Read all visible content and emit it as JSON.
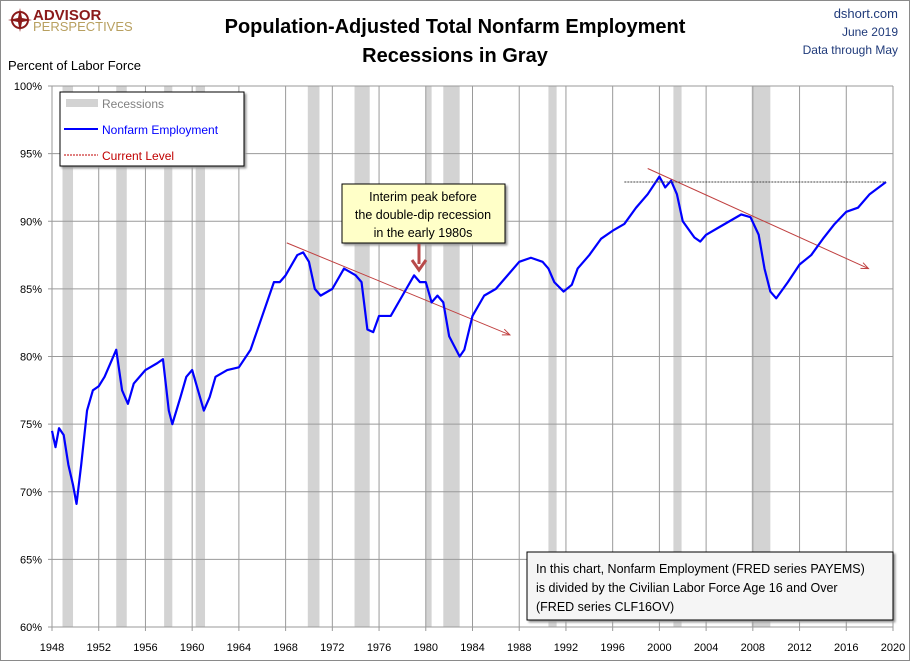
{
  "logo": {
    "line1": "ADVISOR",
    "line2": "PERSPECTIVES"
  },
  "source": {
    "site": "dshort.com",
    "date": "June 2019",
    "note": "Data through May"
  },
  "chart_data": {
    "type": "line",
    "title": "Population-Adjusted Total Nonfarm Employment",
    "subtitle": "Recessions in Gray",
    "ylabel": "Percent of Labor Force",
    "xlim": [
      1948,
      2020
    ],
    "ylim": [
      60,
      100
    ],
    "xticks": [
      1948,
      1952,
      1956,
      1960,
      1964,
      1968,
      1972,
      1976,
      1980,
      1984,
      1988,
      1992,
      1996,
      2000,
      2004,
      2008,
      2012,
      2016,
      2020
    ],
    "yticks": [
      60,
      65,
      70,
      75,
      80,
      85,
      90,
      95,
      100
    ],
    "ytick_suffix": "%",
    "grid": true,
    "legend_placement": "top-left",
    "legend": [
      {
        "label": "Recessions",
        "color": "#d3d3d3"
      },
      {
        "label": "Nonfarm Employment",
        "color": "#0000ff"
      },
      {
        "label": "Current Level",
        "color": "#c00000"
      }
    ],
    "recessions": [
      [
        1948.9,
        1949.8
      ],
      [
        1953.5,
        1954.4
      ],
      [
        1957.6,
        1958.3
      ],
      [
        1960.3,
        1961.1
      ],
      [
        1969.9,
        1970.9
      ],
      [
        1973.9,
        1975.2
      ],
      [
        1980.0,
        1980.5
      ],
      [
        1981.5,
        1982.9
      ],
      [
        1990.5,
        1991.2
      ],
      [
        2001.2,
        2001.9
      ],
      [
        2007.9,
        2009.5
      ]
    ],
    "series": [
      {
        "name": "Nonfarm Employment",
        "color": "#0000ff",
        "x": [
          1948,
          1948.3,
          1948.6,
          1949,
          1949.4,
          1949.8,
          1950.1,
          1950.5,
          1951,
          1951.5,
          1952,
          1952.5,
          1953,
          1953.5,
          1954,
          1954.5,
          1955,
          1956,
          1957,
          1957.5,
          1958,
          1958.3,
          1959,
          1959.5,
          1960,
          1960.5,
          1961,
          1961.5,
          1962,
          1963,
          1964,
          1965,
          1966,
          1967,
          1967.5,
          1968,
          1969,
          1969.5,
          1970,
          1970.5,
          1971,
          1972,
          1973,
          1974,
          1974.5,
          1975,
          1975.5,
          1976,
          1977,
          1978,
          1979,
          1979.5,
          1980,
          1980.5,
          1981,
          1981.5,
          1982,
          1982.9,
          1983.3,
          1984,
          1985,
          1986,
          1987,
          1988,
          1989,
          1990,
          1990.5,
          1991,
          1991.8,
          1992.5,
          1993,
          1994,
          1995,
          1996,
          1997,
          1998,
          1999,
          2000,
          2000.5,
          2001,
          2001.5,
          2002,
          2003,
          2003.5,
          2004,
          2005,
          2006,
          2007,
          2007.8,
          2008.5,
          2009,
          2009.5,
          2010,
          2011,
          2012,
          2013,
          2014,
          2015,
          2016,
          2017,
          2018,
          2019.4
        ],
        "y": [
          74.5,
          73.3,
          74.7,
          74.2,
          72.0,
          70.5,
          69.1,
          72.0,
          76.0,
          77.5,
          77.8,
          78.5,
          79.5,
          80.5,
          77.5,
          76.5,
          78.0,
          79.0,
          79.5,
          79.8,
          76.0,
          75.0,
          77.0,
          78.5,
          79.0,
          77.5,
          76.0,
          77.0,
          78.5,
          79.0,
          79.2,
          80.5,
          83.0,
          85.5,
          85.5,
          86.0,
          87.5,
          87.7,
          87.0,
          85.0,
          84.5,
          85.0,
          86.5,
          86.0,
          85.5,
          82.0,
          81.8,
          83.0,
          83.0,
          84.5,
          86.0,
          85.5,
          85.5,
          84.0,
          84.5,
          84.0,
          81.5,
          80.0,
          80.5,
          83.0,
          84.5,
          85.0,
          86.0,
          87.0,
          87.3,
          87.0,
          86.5,
          85.5,
          84.8,
          85.3,
          86.5,
          87.5,
          88.7,
          89.3,
          89.8,
          91.0,
          92.0,
          93.3,
          92.5,
          93.0,
          92.0,
          90.0,
          88.8,
          88.5,
          89.0,
          89.5,
          90.0,
          90.5,
          90.3,
          89.0,
          86.5,
          84.8,
          84.3,
          85.5,
          86.8,
          87.5,
          88.7,
          89.8,
          90.7,
          91.0,
          92.0,
          92.9
        ]
      }
    ],
    "current_level": {
      "value": 92.9,
      "from": 1997,
      "to": 2019.4
    },
    "trendlines": [
      {
        "from": [
          1968.1,
          88.4
        ],
        "to": [
          1987.2,
          81.6
        ]
      },
      {
        "from": [
          1999.0,
          93.9
        ],
        "to": [
          2017.9,
          86.5
        ]
      }
    ],
    "annotation": {
      "lines": [
        "Interim peak before",
        "the double-dip recession",
        "in the early 1980s"
      ],
      "point": [
        1979.3,
        86.5
      ]
    },
    "note": [
      "In this chart, Nonfarm Employment (FRED series PAYEMS)",
      "is divided by the Civilian Labor Force Age 16 and Over",
      "(FRED series CLF16OV)"
    ]
  }
}
